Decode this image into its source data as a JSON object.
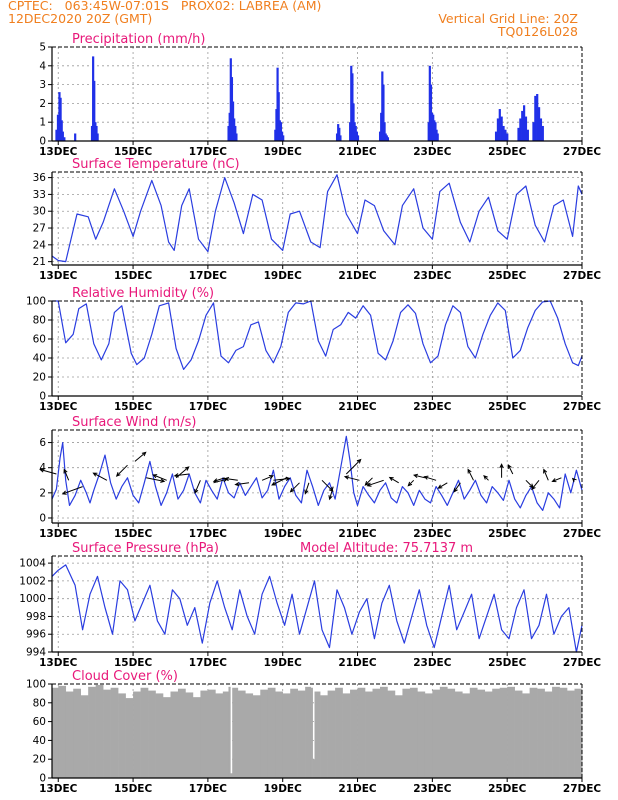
{
  "header": {
    "line1_left": "CPTEC:   063:45W-07:01S   PROX02: LABREA (AM)",
    "line2_left": "12DEC2020 20Z (GMT)",
    "line2_right": "Vertical Grid Line: 20Z",
    "line3_right": "TQ0126L028"
  },
  "colors": {
    "header": "#f07f1f",
    "title": "#e8187a",
    "line": "#2a3de0",
    "bar": "#2030e8",
    "cloud": "#a9a9a9",
    "grid": "#9a9a9a"
  },
  "chart_data": [
    {
      "id": "precip",
      "type": "bar",
      "title": "Precipitation (mm/h)",
      "extra": "",
      "ylim": [
        0,
        5
      ],
      "yticks": [
        0,
        1,
        2,
        3,
        4,
        5
      ],
      "xlim": [
        12.833,
        27.0
      ],
      "xticks": [
        13,
        15,
        17,
        19,
        21,
        23,
        25,
        27
      ],
      "xtick_labels": [
        "13DEC",
        "15DEC",
        "17DEC",
        "19DEC",
        "21DEC",
        "23DEC",
        "25DEC",
        "27DEC"
      ],
      "x": [
        12.95,
        12.99,
        13.03,
        13.06,
        13.09,
        13.12,
        13.16,
        13.45,
        13.9,
        13.93,
        13.96,
        13.99,
        14.02,
        14.05,
        17.55,
        17.58,
        17.61,
        17.64,
        17.67,
        17.7,
        17.73,
        17.76,
        18.8,
        18.83,
        18.86,
        18.89,
        18.92,
        18.95,
        18.98,
        19.01,
        20.45,
        20.48,
        20.51,
        20.54,
        20.8,
        20.83,
        20.86,
        20.89,
        20.92,
        20.95,
        20.98,
        21.01,
        21.6,
        21.63,
        21.66,
        21.69,
        21.72,
        21.75,
        21.78,
        21.81,
        22.9,
        22.93,
        22.96,
        22.99,
        23.02,
        23.05,
        23.08,
        23.11,
        23.14,
        24.7,
        24.75,
        24.8,
        24.85,
        24.9,
        24.95,
        25.0,
        25.3,
        25.35,
        25.4,
        25.45,
        25.5,
        25.55,
        25.7,
        25.75,
        25.8,
        25.85,
        25.9,
        25.95
      ],
      "values": [
        0.6,
        1.4,
        2.6,
        2.3,
        1.1,
        0.5,
        0.2,
        0.4,
        0.8,
        4.5,
        3.2,
        1.0,
        0.8,
        0.4,
        0.8,
        1.5,
        4.4,
        3.4,
        2.1,
        1.2,
        0.8,
        0.4,
        0.6,
        1.7,
        3.9,
        2.6,
        1.1,
        1.0,
        0.5,
        0.3,
        0.4,
        0.9,
        0.7,
        0.3,
        1.0,
        4.0,
        3.6,
        2.0,
        1.0,
        0.8,
        0.5,
        0.3,
        0.5,
        1.5,
        3.7,
        3.0,
        1.0,
        0.4,
        0.3,
        0.2,
        1.0,
        4.0,
        3.0,
        1.5,
        1.4,
        1.1,
        1.0,
        0.6,
        0.4,
        0.5,
        1.2,
        1.7,
        1.3,
        0.8,
        0.6,
        0.4,
        0.7,
        1.2,
        1.6,
        1.9,
        1.3,
        0.6,
        1.0,
        2.4,
        2.5,
        1.8,
        1.2,
        0.8
      ]
    },
    {
      "id": "temp",
      "type": "line",
      "title": "Surface Temperature (nC)",
      "extra": "",
      "ylim": [
        20.4,
        37
      ],
      "yticks": [
        21,
        24,
        27,
        30,
        33,
        36
      ],
      "xlim": [
        12.833,
        27.0
      ],
      "xticks": [
        13,
        15,
        17,
        19,
        21,
        23,
        25,
        27
      ],
      "xtick_labels": [
        "13DEC",
        "15DEC",
        "17DEC",
        "19DEC",
        "21DEC",
        "23DEC",
        "25DEC",
        "27DEC"
      ],
      "x": [
        12.833,
        13.0,
        13.2,
        13.5,
        13.8,
        14.0,
        14.2,
        14.5,
        14.75,
        15.0,
        15.2,
        15.5,
        15.75,
        15.95,
        16.1,
        16.3,
        16.5,
        16.75,
        17.0,
        17.2,
        17.45,
        17.7,
        17.95,
        18.2,
        18.45,
        18.7,
        19.0,
        19.2,
        19.45,
        19.75,
        20.0,
        20.2,
        20.45,
        20.7,
        21.0,
        21.2,
        21.45,
        21.7,
        22.0,
        22.2,
        22.5,
        22.75,
        23.0,
        23.2,
        23.45,
        23.75,
        24.0,
        24.25,
        24.5,
        24.75,
        25.0,
        25.25,
        25.5,
        25.75,
        26.0,
        26.25,
        26.5,
        26.75,
        26.9,
        27.0
      ],
      "values": [
        22.0,
        21.2,
        21.0,
        29.5,
        29.0,
        25.0,
        28.0,
        34.0,
        30.0,
        25.5,
        30.0,
        35.5,
        31.0,
        24.5,
        23.0,
        31.0,
        34.0,
        25.0,
        22.8,
        30.0,
        36.0,
        31.5,
        26.0,
        33.0,
        32.0,
        25.0,
        23.0,
        29.5,
        30.0,
        24.5,
        23.5,
        33.5,
        36.5,
        29.5,
        26.0,
        32.0,
        31.0,
        26.5,
        24.0,
        31.0,
        34.0,
        27.0,
        25.0,
        33.5,
        35.0,
        28.0,
        24.5,
        30.0,
        32.5,
        26.5,
        25.0,
        33.0,
        34.5,
        27.5,
        24.5,
        31.0,
        32.0,
        25.5,
        34.5,
        33.0
      ]
    },
    {
      "id": "rh",
      "type": "line",
      "title": "Relative Humidity (%)",
      "extra": "",
      "ylim": [
        0,
        100
      ],
      "yticks": [
        0,
        20,
        40,
        60,
        80,
        100
      ],
      "xlim": [
        12.833,
        27.0
      ],
      "xticks": [
        13,
        15,
        17,
        19,
        21,
        23,
        25,
        27
      ],
      "xtick_labels": [
        "13DEC",
        "15DEC",
        "17DEC",
        "19DEC",
        "21DEC",
        "23DEC",
        "25DEC",
        "27DEC"
      ],
      "x": [
        12.833,
        13.0,
        13.2,
        13.4,
        13.55,
        13.75,
        13.95,
        14.15,
        14.35,
        14.5,
        14.7,
        14.95,
        15.1,
        15.3,
        15.5,
        15.7,
        15.95,
        16.15,
        16.35,
        16.55,
        16.75,
        16.95,
        17.15,
        17.35,
        17.55,
        17.75,
        17.95,
        18.15,
        18.35,
        18.55,
        18.75,
        18.95,
        19.15,
        19.35,
        19.55,
        19.75,
        19.95,
        20.15,
        20.35,
        20.55,
        20.75,
        20.95,
        21.15,
        21.35,
        21.55,
        21.75,
        21.95,
        22.15,
        22.35,
        22.55,
        22.75,
        22.95,
        23.15,
        23.35,
        23.55,
        23.75,
        23.95,
        24.15,
        24.35,
        24.55,
        24.75,
        24.95,
        25.15,
        25.35,
        25.55,
        25.75,
        25.95,
        26.15,
        26.35,
        26.55,
        26.75,
        26.9,
        27.0
      ],
      "values": [
        100,
        100,
        56,
        65,
        92,
        97,
        55,
        38,
        55,
        88,
        95,
        45,
        33,
        40,
        65,
        95,
        98,
        50,
        28,
        38,
        58,
        85,
        98,
        42,
        35,
        48,
        52,
        75,
        78,
        48,
        35,
        52,
        88,
        98,
        97,
        100,
        58,
        42,
        70,
        75,
        88,
        82,
        95,
        85,
        45,
        38,
        58,
        88,
        96,
        87,
        55,
        35,
        42,
        75,
        95,
        88,
        52,
        40,
        65,
        85,
        98,
        90,
        40,
        48,
        72,
        90,
        99,
        100,
        82,
        55,
        35,
        32,
        42
      ]
    },
    {
      "id": "wind",
      "type": "line",
      "title": "Surface Wind (m/s)",
      "extra": "",
      "ylim": [
        -0.4,
        7
      ],
      "yticks": [
        0,
        2,
        4,
        6
      ],
      "xlim": [
        12.833,
        27.0
      ],
      "xticks": [
        13,
        15,
        17,
        19,
        21,
        23,
        25,
        27
      ],
      "xtick_labels": [
        "13DEC",
        "15DEC",
        "17DEC",
        "19DEC",
        "21DEC",
        "23DEC",
        "25DEC",
        "27DEC"
      ],
      "x": [
        12.833,
        12.95,
        13.05,
        13.12,
        13.2,
        13.3,
        13.45,
        13.6,
        13.75,
        13.85,
        13.95,
        14.1,
        14.25,
        14.4,
        14.55,
        14.7,
        14.85,
        15.0,
        15.15,
        15.3,
        15.45,
        15.6,
        15.75,
        15.9,
        16.05,
        16.2,
        16.35,
        16.5,
        16.65,
        16.8,
        16.95,
        17.1,
        17.25,
        17.4,
        17.55,
        17.7,
        17.85,
        18.0,
        18.15,
        18.3,
        18.45,
        18.6,
        18.75,
        18.9,
        19.05,
        19.2,
        19.35,
        19.5,
        19.65,
        19.8,
        19.95,
        20.1,
        20.25,
        20.4,
        20.55,
        20.7,
        20.8,
        20.9,
        21.0,
        21.15,
        21.3,
        21.45,
        21.6,
        21.75,
        21.9,
        22.05,
        22.2,
        22.35,
        22.5,
        22.65,
        22.8,
        22.95,
        23.1,
        23.25,
        23.4,
        23.55,
        23.7,
        23.85,
        24.0,
        24.15,
        24.3,
        24.45,
        24.6,
        24.75,
        24.9,
        25.05,
        25.2,
        25.35,
        25.5,
        25.65,
        25.8,
        25.95,
        26.1,
        26.25,
        26.4,
        26.55,
        26.7,
        26.85,
        27.0
      ],
      "values": [
        1.5,
        2.3,
        4.8,
        6.0,
        3.0,
        1.0,
        1.8,
        3.0,
        2.0,
        1.2,
        2.2,
        3.5,
        5.0,
        2.8,
        1.5,
        2.5,
        3.2,
        1.8,
        1.2,
        2.8,
        4.5,
        2.5,
        1.0,
        2.0,
        3.5,
        1.5,
        2.2,
        3.5,
        2.0,
        1.2,
        3.0,
        2.2,
        1.5,
        3.2,
        2.0,
        1.6,
        2.8,
        1.8,
        2.5,
        3.2,
        1.6,
        2.2,
        3.8,
        1.5,
        2.5,
        3.2,
        1.8,
        1.2,
        3.8,
        2.5,
        1.0,
        2.2,
        2.8,
        1.5,
        4.0,
        6.5,
        4.5,
        2.0,
        1.0,
        2.5,
        1.8,
        1.2,
        2.2,
        2.8,
        1.6,
        1.2,
        2.5,
        2.0,
        1.0,
        2.2,
        1.5,
        1.2,
        2.5,
        1.8,
        1.0,
        2.0,
        3.0,
        1.5,
        2.2,
        3.0,
        1.8,
        1.2,
        2.5,
        2.0,
        1.4,
        3.0,
        1.5,
        0.8,
        1.8,
        2.5,
        1.2,
        0.6,
        2.0,
        1.5,
        0.8,
        3.5,
        2.0,
        3.8,
        2.2
      ]
    },
    {
      "id": "pres",
      "type": "line",
      "title": "Surface Pressure (hPa)",
      "extra": "Model Altitude: 75.7137 m",
      "ylim": [
        994,
        1004.8
      ],
      "yticks": [
        994,
        996,
        998,
        1000,
        1002,
        1004
      ],
      "xlim": [
        12.833,
        27.0
      ],
      "xticks": [
        13,
        15,
        17,
        19,
        21,
        23,
        25,
        27
      ],
      "xtick_labels": [
        "13DEC",
        "15DEC",
        "17DEC",
        "19DEC",
        "21DEC",
        "23DEC",
        "25DEC",
        "27DEC"
      ],
      "x": [
        12.833,
        13.0,
        13.2,
        13.45,
        13.65,
        13.85,
        14.05,
        14.25,
        14.45,
        14.65,
        14.85,
        15.05,
        15.25,
        15.45,
        15.65,
        15.85,
        16.05,
        16.25,
        16.45,
        16.65,
        16.85,
        17.05,
        17.25,
        17.45,
        17.65,
        17.85,
        18.05,
        18.25,
        18.45,
        18.65,
        18.85,
        19.05,
        19.25,
        19.45,
        19.65,
        19.85,
        20.05,
        20.25,
        20.45,
        20.65,
        20.85,
        21.05,
        21.25,
        21.45,
        21.65,
        21.85,
        22.05,
        22.25,
        22.45,
        22.65,
        22.85,
        23.05,
        23.25,
        23.45,
        23.65,
        23.85,
        24.05,
        24.25,
        24.45,
        24.65,
        24.85,
        25.05,
        25.25,
        25.45,
        25.65,
        25.85,
        26.05,
        26.25,
        26.45,
        26.65,
        26.85,
        27.0
      ],
      "values": [
        1002.5,
        1003.2,
        1003.8,
        1001.5,
        996.5,
        1000.5,
        1002.5,
        999.0,
        996.0,
        1002.0,
        1001.0,
        997.5,
        999.5,
        1001.5,
        997.5,
        996.0,
        1001.0,
        1000.0,
        997.0,
        999.0,
        995.0,
        999.5,
        1002.0,
        999.0,
        996.5,
        1001.0,
        998.0,
        996.0,
        1000.5,
        1002.5,
        999.5,
        997.0,
        1000.5,
        996.0,
        999.0,
        1002.0,
        996.5,
        994.5,
        1001.0,
        999.0,
        996.0,
        998.5,
        1000.0,
        995.5,
        999.5,
        1001.5,
        997.5,
        995.0,
        998.0,
        1001.0,
        997.0,
        994.5,
        998.0,
        1001.5,
        996.5,
        998.5,
        1000.5,
        995.5,
        998.0,
        1000.5,
        996.5,
        995.5,
        999.0,
        1001.0,
        995.5,
        997.0,
        1000.5,
        996.0,
        998.0,
        999.0,
        994.0,
        997.0
      ]
    },
    {
      "id": "cloud",
      "type": "area",
      "title": "Cloud Cover (%)",
      "extra": "",
      "ylim": [
        0,
        100
      ],
      "yticks": [
        0,
        20,
        40,
        60,
        80,
        100
      ],
      "xlim": [
        12.833,
        27.0
      ],
      "xticks": [
        13,
        15,
        17,
        19,
        21,
        23,
        25,
        27
      ],
      "xtick_labels": [
        "13DEC",
        "15DEC",
        "17DEC",
        "19DEC",
        "21DEC",
        "23DEC",
        "25DEC",
        "27DEC"
      ],
      "x": [
        12.833,
        13.0,
        13.2,
        13.4,
        13.6,
        13.8,
        14.0,
        14.2,
        14.4,
        14.6,
        14.8,
        15.0,
        15.2,
        15.4,
        15.6,
        15.8,
        16.0,
        16.2,
        16.4,
        16.6,
        16.8,
        17.0,
        17.2,
        17.4,
        17.55,
        17.6,
        17.65,
        17.8,
        18.0,
        18.2,
        18.4,
        18.6,
        18.8,
        19.0,
        19.2,
        19.4,
        19.6,
        19.75,
        19.8,
        19.85,
        20.0,
        20.2,
        20.4,
        20.6,
        20.8,
        21.0,
        21.2,
        21.4,
        21.6,
        21.8,
        22.0,
        22.2,
        22.4,
        22.6,
        22.8,
        23.0,
        23.2,
        23.4,
        23.6,
        23.8,
        24.0,
        24.2,
        24.4,
        24.6,
        24.8,
        25.0,
        25.2,
        25.4,
        25.6,
        25.8,
        26.0,
        26.2,
        26.4,
        26.6,
        26.8,
        27.0
      ],
      "values": [
        96,
        98,
        92,
        95,
        88,
        97,
        99,
        94,
        96,
        90,
        85,
        92,
        96,
        93,
        90,
        86,
        92,
        95,
        91,
        86,
        93,
        94,
        90,
        92,
        97,
        5,
        96,
        93,
        90,
        88,
        94,
        96,
        92,
        90,
        95,
        93,
        97,
        96,
        20,
        92,
        88,
        93,
        96,
        90,
        94,
        96,
        92,
        95,
        97,
        93,
        88,
        95,
        96,
        92,
        90,
        94,
        97,
        95,
        92,
        90,
        96,
        94,
        92,
        95,
        96,
        97,
        93,
        90,
        96,
        95,
        92,
        97,
        96,
        93,
        95,
        94
      ]
    }
  ],
  "wind_arrows": {
    "x": [
      12.95,
      13.28,
      13.65,
      14.3,
      14.85,
      15.05,
      15.35,
      15.9,
      16.15,
      16.5,
      16.8,
      17.15,
      17.45,
      17.8,
      18.1,
      18.45,
      18.75,
      19.1,
      19.45,
      19.7,
      20.05,
      20.35,
      20.7,
      21.05,
      21.4,
      21.7,
      22.1,
      22.5,
      22.8,
      23.1,
      23.4,
      23.75,
      24.1,
      24.5,
      24.85,
      25.15,
      25.5,
      25.85,
      26.1,
      26.45,
      26.8
    ],
    "y": [
      3.5,
      3.0,
      2.5,
      3.0,
      4.2,
      4.5,
      3.2,
      3.0,
      3.2,
      3.5,
      3.0,
      2.8,
      3.2,
      3.0,
      2.8,
      3.0,
      3.0,
      3.2,
      2.8,
      2.8,
      3.0,
      2.5,
      3.5,
      3.0,
      3.2,
      3.0,
      2.8,
      3.0,
      3.2,
      3.0,
      2.8,
      2.8,
      3.0,
      3.0,
      3.2,
      3.5,
      3.0,
      3.0,
      3.0,
      3.2,
      3.0
    ],
    "u": [
      -1.8,
      -0.5,
      -2.2,
      -1.5,
      -1.2,
      1.2,
      2.0,
      -1.5,
      1.4,
      -1.6,
      -0.6,
      1.5,
      -1.2,
      -1.4,
      -1.5,
      1.2,
      1.8,
      -1.6,
      -1.0,
      -0.4,
      1.2,
      -0.4,
      1.6,
      -1.6,
      -0.8,
      -1.8,
      -1.0,
      -0.6,
      -1.2,
      -1.3,
      -1.0,
      -0.7,
      -0.6,
      -0.5,
      0.0,
      -0.5,
      0.8,
      -0.8,
      -0.5,
      -1.0,
      -0.2
    ],
    "v": [
      0.5,
      1.2,
      -0.8,
      0.8,
      -1.2,
      1.0,
      -0.4,
      0.6,
      1.2,
      -0.2,
      -1.4,
      0.4,
      -0.4,
      0.2,
      -0.2,
      0.5,
      0.2,
      -0.8,
      -1.0,
      -1.2,
      -1.2,
      -1.4,
      1.6,
      0.4,
      -0.8,
      -0.6,
      0.6,
      -0.6,
      0.3,
      0.4,
      -0.6,
      -1.0,
      1.2,
      0.5,
      1.5,
      1.0,
      -0.8,
      -1.0,
      1.2,
      -0.4,
      0.2
    ]
  }
}
